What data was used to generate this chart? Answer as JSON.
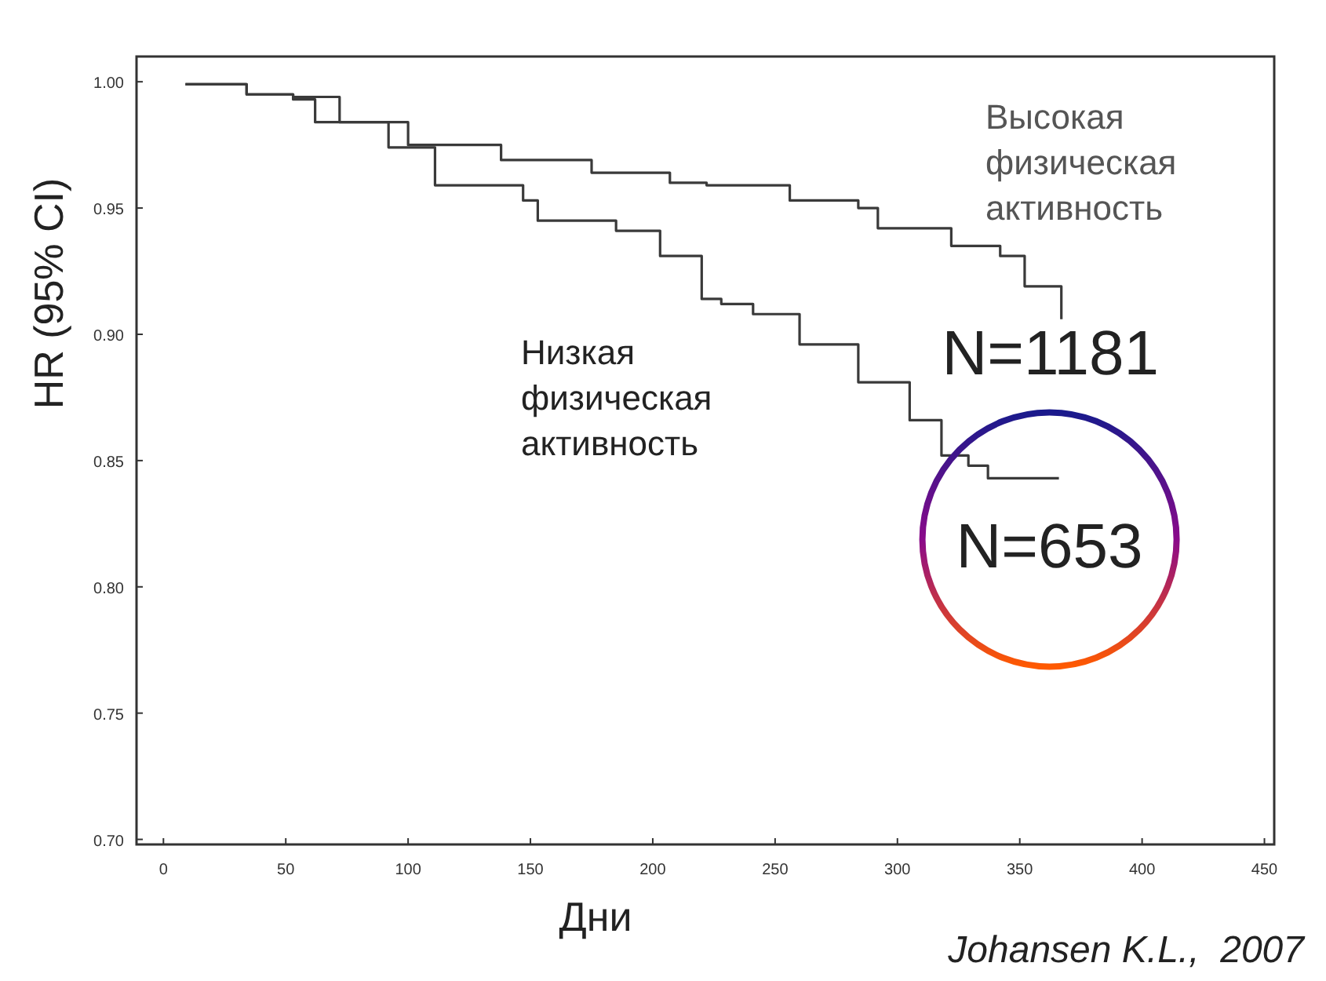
{
  "chart_data": {
    "type": "step",
    "xlabel": "Дни",
    "ylabel": "HR (95% CI)",
    "xlim": [
      -11,
      454
    ],
    "ylim": [
      0.698,
      1.01
    ],
    "xticks": [
      0,
      50,
      100,
      150,
      200,
      250,
      300,
      350,
      400,
      450
    ],
    "yticks": [
      {
        "value": 0.7,
        "label": "0.70"
      },
      {
        "value": 0.75,
        "label": "0.75"
      },
      {
        "value": 0.8,
        "label": "0.80"
      },
      {
        "value": 0.85,
        "label": "0.85"
      },
      {
        "value": 0.9,
        "label": "0.90"
      },
      {
        "value": 0.95,
        "label": "0.95"
      },
      {
        "value": 1.0,
        "label": "1.00"
      }
    ],
    "grid": false,
    "series": [
      {
        "name": "Высокая физическая активность",
        "color": "#3a3a3a",
        "x": [
          9,
          34,
          53,
          72,
          100,
          138,
          175,
          207,
          222,
          256,
          284,
          292,
          322,
          342,
          352,
          367,
          367
        ],
        "values": [
          0.999,
          0.995,
          0.994,
          0.984,
          0.975,
          0.969,
          0.964,
          0.96,
          0.959,
          0.953,
          0.95,
          0.942,
          0.935,
          0.931,
          0.919,
          0.916,
          0.906
        ]
      },
      {
        "name": "Низкая физическая активность",
        "color": "#3a3a3a",
        "x": [
          9,
          34,
          53,
          62,
          79,
          92,
          111,
          147,
          153,
          185,
          203,
          220,
          228,
          241,
          260,
          284,
          305,
          318,
          329,
          337,
          366
        ],
        "values": [
          0.999,
          0.995,
          0.993,
          0.984,
          0.984,
          0.974,
          0.959,
          0.953,
          0.945,
          0.941,
          0.931,
          0.914,
          0.912,
          0.908,
          0.896,
          0.881,
          0.866,
          0.852,
          0.848,
          0.843,
          0.843
        ]
      }
    ],
    "annotations": [
      {
        "text": "N=1181",
        "x": 367,
        "y": 0.906
      },
      {
        "text": "N=653",
        "x": 366,
        "y": 0.843
      },
      "Johansen K.L.,  2007"
    ]
  }
}
